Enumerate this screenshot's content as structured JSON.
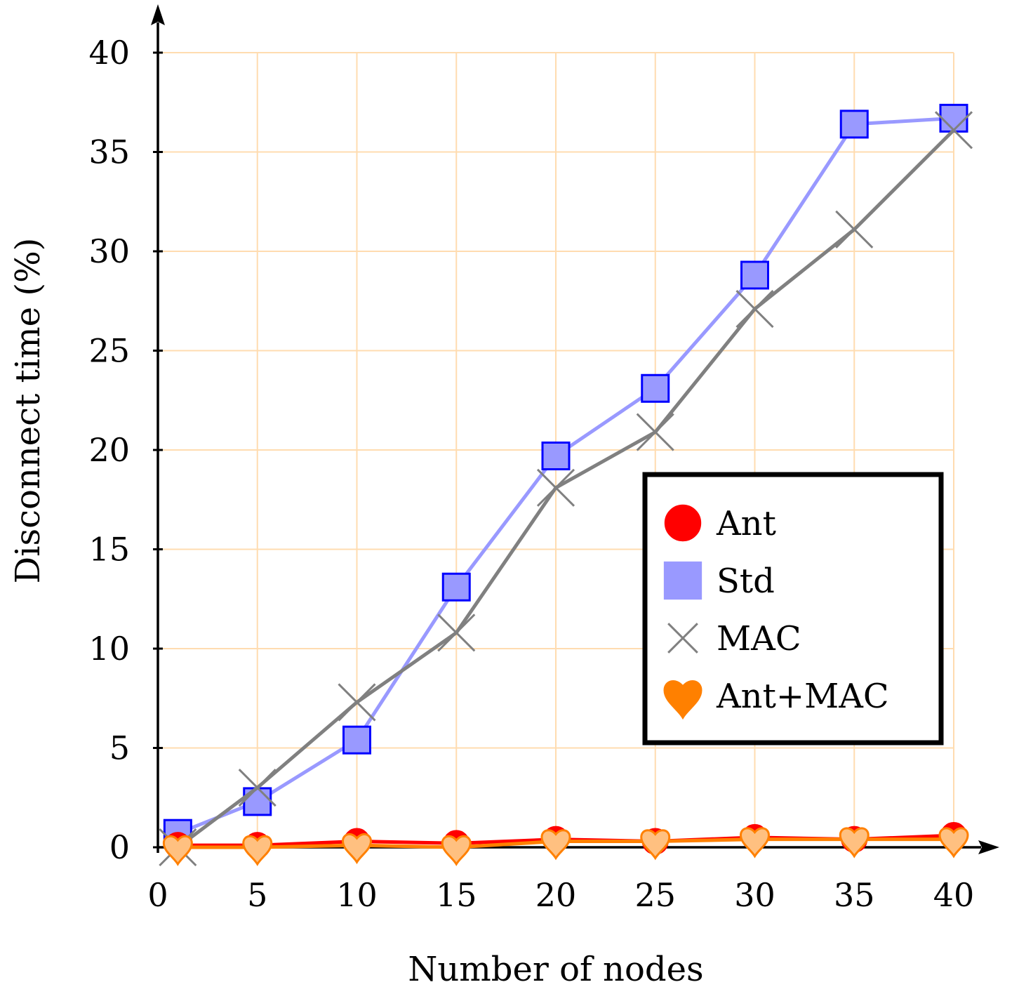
{
  "chart_data": {
    "type": "line",
    "title": "",
    "xlabel": "Number of nodes",
    "ylabel": "Disconnect time (%)",
    "xlim": [
      0,
      40
    ],
    "ylim": [
      0,
      40
    ],
    "grid": true,
    "x_ticks": [
      0,
      5,
      10,
      15,
      20,
      25,
      30,
      35,
      40
    ],
    "y_ticks": [
      0,
      5,
      10,
      15,
      20,
      25,
      30,
      35,
      40
    ],
    "x_tick_labels": [
      "0",
      "5",
      "10",
      "15",
      "20",
      "25",
      "30",
      "35",
      "40"
    ],
    "y_tick_labels": [
      "0",
      "5",
      "10",
      "15",
      "20",
      "25",
      "30",
      "35",
      "40"
    ],
    "legend_position": "center-right",
    "x": [
      1,
      5,
      10,
      15,
      20,
      25,
      30,
      35,
      40
    ],
    "series": [
      {
        "name": "Ant",
        "marker": "circle",
        "line_color": "#ff0000",
        "marker_fill": "#ff0000",
        "marker_stroke": "#ff0000",
        "values": [
          0.1,
          0.1,
          0.3,
          0.2,
          0.4,
          0.3,
          0.5,
          0.4,
          0.6
        ]
      },
      {
        "name": "Std",
        "marker": "square",
        "line_color": "#9999ff",
        "marker_fill": "#9999ff",
        "marker_stroke": "#0000ff",
        "values": [
          0.7,
          2.3,
          5.4,
          13.1,
          19.7,
          23.1,
          28.8,
          36.4,
          36.7
        ]
      },
      {
        "name": "MAC",
        "marker": "cross",
        "line_color": "#808080",
        "marker_fill": "none",
        "marker_stroke": "#808080",
        "values": [
          0.0,
          3.0,
          7.3,
          10.8,
          18.1,
          20.9,
          27.1,
          31.1,
          36.1
        ]
      },
      {
        "name": "Ant+MAC",
        "marker": "heart",
        "line_color": "#ff8000",
        "marker_fill": "#ffc080",
        "marker_stroke": "#ff8000",
        "legend_fill": "#ff8000",
        "values": [
          0.0,
          0.0,
          0.1,
          0.0,
          0.3,
          0.3,
          0.4,
          0.4,
          0.4
        ]
      }
    ]
  }
}
